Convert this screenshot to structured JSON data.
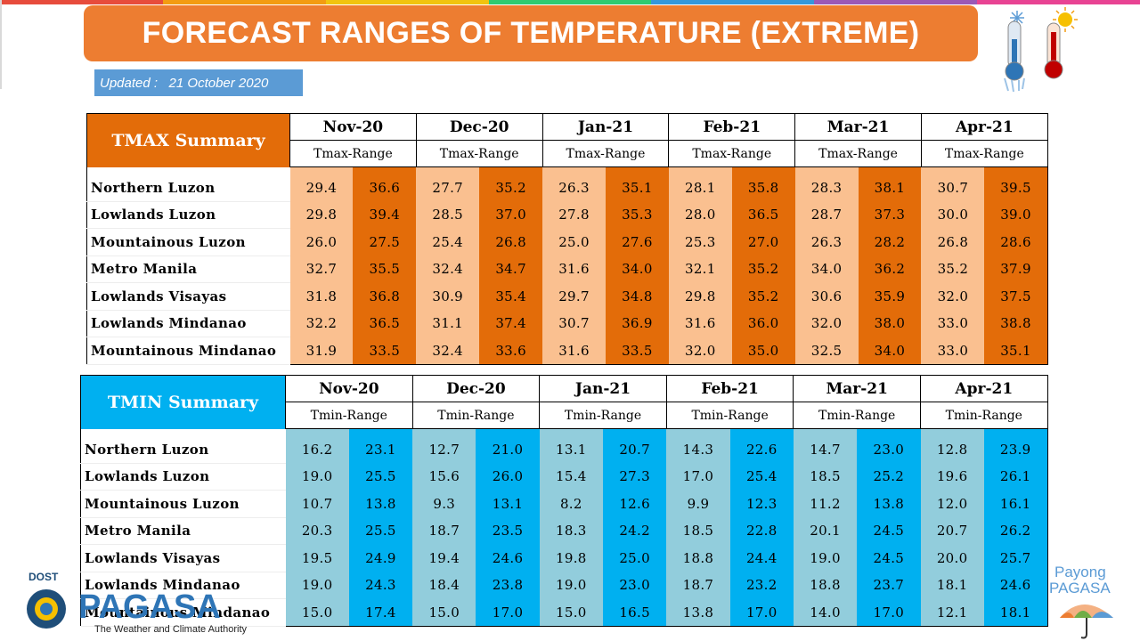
{
  "header": {
    "title": "FORECAST RANGES OF TEMPERATURE (EXTREME)",
    "updated": "Updated :   21 October 2020",
    "strip_colors": [
      "#e74c3c",
      "#f39c12",
      "#f1c40f",
      "#2ecc71",
      "#3498db",
      "#9b59b6",
      "#e84393"
    ]
  },
  "tmax": {
    "title": "TMAX Summary",
    "range_label": "Tmax-Range",
    "months": [
      "Nov-20",
      "Dec-20",
      "Jan-21",
      "Feb-21",
      "Mar-21",
      "Apr-21"
    ],
    "colors": {
      "header": "#e36c09",
      "low": "#fac090",
      "high": "#e36c09"
    },
    "rows": [
      {
        "region": "Northern Luzon",
        "values": [
          "29.4",
          "36.6",
          "27.7",
          "35.2",
          "26.3",
          "35.1",
          "28.1",
          "35.8",
          "28.3",
          "38.1",
          "30.7",
          "39.5"
        ]
      },
      {
        "region": "Lowlands Luzon",
        "values": [
          "29.8",
          "39.4",
          "28.5",
          "37.0",
          "27.8",
          "35.3",
          "28.0",
          "36.5",
          "28.7",
          "37.3",
          "30.0",
          "39.0"
        ]
      },
      {
        "region": "Mountainous Luzon",
        "values": [
          "26.0",
          "27.5",
          "25.4",
          "26.8",
          "25.0",
          "27.6",
          "25.3",
          "27.0",
          "26.3",
          "28.2",
          "26.8",
          "28.6"
        ]
      },
      {
        "region": "Metro Manila",
        "values": [
          "32.7",
          "35.5",
          "32.4",
          "34.7",
          "31.6",
          "34.0",
          "32.1",
          "35.2",
          "34.0",
          "36.2",
          "35.2",
          "37.9"
        ]
      },
      {
        "region": "Lowlands Visayas",
        "values": [
          "31.8",
          "36.8",
          "30.9",
          "35.4",
          "29.7",
          "34.8",
          "29.8",
          "35.2",
          "30.6",
          "35.9",
          "32.0",
          "37.5"
        ]
      },
      {
        "region": "Lowlands Mindanao",
        "values": [
          "32.2",
          "36.5",
          "31.1",
          "37.4",
          "30.7",
          "36.9",
          "31.6",
          "36.0",
          "32.0",
          "38.0",
          "33.0",
          "38.8"
        ]
      },
      {
        "region": "Mountainous Mindanao",
        "values": [
          "31.9",
          "33.5",
          "32.4",
          "33.6",
          "31.6",
          "33.5",
          "32.0",
          "35.0",
          "32.5",
          "34.0",
          "33.0",
          "35.1"
        ]
      }
    ]
  },
  "tmin": {
    "title": "TMIN Summary",
    "range_label": "Tmin-Range",
    "months": [
      "Nov-20",
      "Dec-20",
      "Jan-21",
      "Feb-21",
      "Mar-21",
      "Apr-21"
    ],
    "colors": {
      "header": "#00b0f0",
      "low": "#92cddc",
      "high": "#00b0f0"
    },
    "rows": [
      {
        "region": "Northern Luzon",
        "values": [
          "16.2",
          "23.1",
          "12.7",
          "21.0",
          "13.1",
          "20.7",
          "14.3",
          "22.6",
          "14.7",
          "23.0",
          "12.8",
          "23.9"
        ]
      },
      {
        "region": "Lowlands Luzon",
        "values": [
          "19.0",
          "25.5",
          "15.6",
          "26.0",
          "15.4",
          "27.3",
          "17.0",
          "25.4",
          "18.5",
          "25.2",
          "19.6",
          "26.1"
        ]
      },
      {
        "region": "Mountainous Luzon",
        "values": [
          "10.7",
          "13.8",
          "9.3",
          "13.1",
          "8.2",
          "12.6",
          "9.9",
          "12.3",
          "11.2",
          "13.8",
          "12.0",
          "16.1"
        ]
      },
      {
        "region": "Metro Manila",
        "values": [
          "20.3",
          "25.5",
          "18.7",
          "23.5",
          "18.3",
          "24.2",
          "18.5",
          "22.8",
          "20.1",
          "24.5",
          "20.7",
          "26.2"
        ]
      },
      {
        "region": "Lowlands Visayas",
        "values": [
          "19.5",
          "24.9",
          "19.4",
          "24.6",
          "19.8",
          "25.0",
          "18.8",
          "24.4",
          "19.0",
          "24.5",
          "20.0",
          "25.7"
        ]
      },
      {
        "region": "Lowlands Mindanao",
        "values": [
          "19.0",
          "24.3",
          "18.4",
          "23.8",
          "19.0",
          "23.0",
          "18.7",
          "23.2",
          "18.8",
          "23.7",
          "18.1",
          "24.6"
        ]
      },
      {
        "region": "Mountainous Mindanao",
        "values": [
          "15.0",
          "17.4",
          "15.0",
          "17.0",
          "15.0",
          "16.5",
          "13.8",
          "17.0",
          "14.0",
          "17.0",
          "12.1",
          "18.1"
        ]
      }
    ]
  },
  "footer": {
    "logo_top": "DOST",
    "logo_name": "PAGASA",
    "logo_tagline": "The Weather and Climate Authority",
    "payong_line1": "Payong",
    "payong_line2": "PAGASA"
  }
}
